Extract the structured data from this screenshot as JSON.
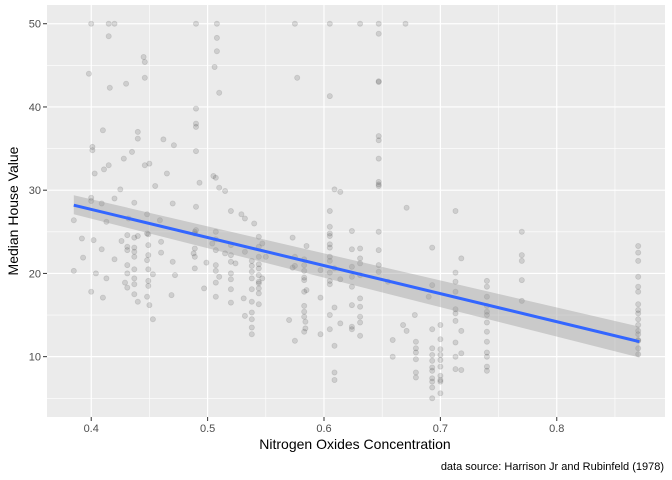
{
  "chart_data": {
    "type": "scatter",
    "title": "",
    "xlabel": "Nitrogen Oxides Concentration",
    "ylabel": "Median House Value",
    "caption": "data source: Harrison Jr and Rubinfeld (1978)",
    "xlim": [
      0.362,
      0.893
    ],
    "ylim": [
      2.75,
      52.25
    ],
    "x_ticks": [
      0.4,
      0.5,
      0.6,
      0.7,
      0.8
    ],
    "x_tick_labels": [
      "0.4",
      "0.5",
      "0.6",
      "0.7",
      "0.8"
    ],
    "y_ticks": [
      10,
      20,
      30,
      40,
      50
    ],
    "y_tick_labels": [
      "10",
      "20",
      "30",
      "40",
      "50"
    ],
    "grid": true,
    "legend": "none",
    "colors": {
      "panel_background": "#ebebeb",
      "grid": "#ffffff",
      "point": "#000000",
      "point_opacity": 0.12,
      "fit_line": "#3366ff",
      "ribbon": "#999999",
      "ribbon_opacity": 0.4
    },
    "fit": {
      "method": "lm",
      "x": [
        0.385,
        0.871
      ],
      "y": [
        28.2,
        11.8
      ],
      "ci_lower": [
        27.1,
        9.9
      ],
      "ci_upper": [
        29.4,
        13.6
      ]
    },
    "points": [
      [
        0.4,
        50.0
      ],
      [
        0.415,
        50.0
      ],
      [
        0.42,
        50.0
      ],
      [
        0.49,
        50.0
      ],
      [
        0.508,
        50.0
      ],
      [
        0.575,
        50.0
      ],
      [
        0.605,
        50.0
      ],
      [
        0.631,
        50.0
      ],
      [
        0.647,
        50.0
      ],
      [
        0.67,
        50.0
      ],
      [
        0.415,
        48.5
      ],
      [
        0.508,
        48.3
      ],
      [
        0.647,
        48.8
      ],
      [
        0.445,
        46.0
      ],
      [
        0.508,
        46.7
      ],
      [
        0.446,
        45.4
      ],
      [
        0.506,
        44.8
      ],
      [
        0.398,
        44.0
      ],
      [
        0.446,
        43.5
      ],
      [
        0.577,
        43.5
      ],
      [
        0.647,
        43.1
      ],
      [
        0.43,
        42.8
      ],
      [
        0.416,
        42.3
      ],
      [
        0.51,
        41.7
      ],
      [
        0.605,
        41.3
      ],
      [
        0.49,
        39.8
      ],
      [
        0.49,
        38.0
      ],
      [
        0.49,
        37.6
      ],
      [
        0.41,
        37.2
      ],
      [
        0.44,
        37.0
      ],
      [
        0.44,
        36.2
      ],
      [
        0.647,
        36.5
      ],
      [
        0.647,
        36.0
      ],
      [
        0.462,
        36.1
      ],
      [
        0.471,
        35.4
      ],
      [
        0.401,
        35.2
      ],
      [
        0.401,
        34.8
      ],
      [
        0.435,
        34.6
      ],
      [
        0.49,
        34.7
      ],
      [
        0.428,
        33.8
      ],
      [
        0.647,
        33.8
      ],
      [
        0.45,
        33.2
      ],
      [
        0.446,
        33.0
      ],
      [
        0.415,
        33.0
      ],
      [
        0.411,
        32.5
      ],
      [
        0.403,
        32.0
      ],
      [
        0.505,
        31.7
      ],
      [
        0.507,
        31.5
      ],
      [
        0.465,
        32.0
      ],
      [
        0.493,
        30.9
      ],
      [
        0.647,
        31.0
      ],
      [
        0.647,
        30.5
      ],
      [
        0.609,
        30.1
      ],
      [
        0.614,
        29.8
      ],
      [
        0.425,
        30.1
      ],
      [
        0.455,
        30.5
      ],
      [
        0.51,
        30.3
      ],
      [
        0.515,
        29.9
      ],
      [
        0.4,
        29.1
      ],
      [
        0.42,
        29.0
      ],
      [
        0.4,
        28.7
      ],
      [
        0.437,
        28.5
      ],
      [
        0.47,
        28.4
      ],
      [
        0.49,
        28.0
      ],
      [
        0.409,
        28.4
      ],
      [
        0.52,
        27.5
      ],
      [
        0.605,
        27.5
      ],
      [
        0.671,
        27.9
      ],
      [
        0.713,
        27.5
      ],
      [
        0.448,
        27.1
      ],
      [
        0.529,
        27.1
      ],
      [
        0.532,
        26.6
      ],
      [
        0.432,
        26.6
      ],
      [
        0.459,
        26.4
      ],
      [
        0.385,
        26.4
      ],
      [
        0.413,
        26.2
      ],
      [
        0.54,
        26.0
      ],
      [
        0.49,
        25.2
      ],
      [
        0.624,
        25.1
      ],
      [
        0.647,
        25.0
      ],
      [
        0.77,
        25.0
      ],
      [
        0.448,
        24.8
      ],
      [
        0.489,
        24.8
      ],
      [
        0.544,
        24.4
      ],
      [
        0.573,
        24.3
      ],
      [
        0.44,
        24.5
      ],
      [
        0.392,
        24.2
      ],
      [
        0.87,
        23.3
      ],
      [
        0.402,
        24.0
      ],
      [
        0.426,
        23.9
      ],
      [
        0.46,
        23.8
      ],
      [
        0.504,
        23.6
      ],
      [
        0.52,
        23.4
      ],
      [
        0.547,
        23.6
      ],
      [
        0.605,
        23.1
      ],
      [
        0.624,
        22.9
      ],
      [
        0.693,
        23.1
      ],
      [
        0.585,
        23.3
      ],
      [
        0.409,
        22.9
      ],
      [
        0.437,
        22.6
      ],
      [
        0.46,
        22.5
      ],
      [
        0.488,
        22.4
      ],
      [
        0.515,
        22.4
      ],
      [
        0.532,
        22.6
      ],
      [
        0.55,
        22.0
      ],
      [
        0.583,
        21.7
      ],
      [
        0.605,
        21.5
      ],
      [
        0.631,
        21.8
      ],
      [
        0.718,
        21.8
      ],
      [
        0.77,
        22.2
      ],
      [
        0.393,
        21.9
      ],
      [
        0.42,
        21.7
      ],
      [
        0.448,
        21.6
      ],
      [
        0.47,
        21.4
      ],
      [
        0.499,
        21.3
      ],
      [
        0.524,
        21.2
      ],
      [
        0.538,
        20.9
      ],
      [
        0.544,
        20.6
      ],
      [
        0.573,
        20.7
      ],
      [
        0.597,
        20.4
      ],
      [
        0.609,
        20.6
      ],
      [
        0.647,
        20.2
      ],
      [
        0.713,
        20.1
      ],
      [
        0.87,
        19.6
      ],
      [
        0.385,
        20.3
      ],
      [
        0.404,
        20.0
      ],
      [
        0.431,
        20.0
      ],
      [
        0.453,
        19.9
      ],
      [
        0.472,
        19.8
      ],
      [
        0.51,
        19.6
      ],
      [
        0.547,
        19.4
      ],
      [
        0.583,
        19.2
      ],
      [
        0.614,
        19.3
      ],
      [
        0.655,
        19.0
      ],
      [
        0.74,
        19.1
      ],
      [
        0.77,
        19.2
      ],
      [
        0.413,
        19.4
      ],
      [
        0.429,
        18.9
      ],
      [
        0.437,
        18.7
      ],
      [
        0.449,
        18.5
      ],
      [
        0.497,
        18.2
      ],
      [
        0.52,
        18.1
      ],
      [
        0.544,
        18.2
      ],
      [
        0.585,
        18.0
      ],
      [
        0.624,
        18.4
      ],
      [
        0.693,
        18.6
      ],
      [
        0.713,
        17.8
      ],
      [
        0.74,
        18.4
      ],
      [
        0.87,
        17.8
      ],
      [
        0.4,
        17.8
      ],
      [
        0.437,
        17.5
      ],
      [
        0.448,
        17.2
      ],
      [
        0.469,
        17.4
      ],
      [
        0.507,
        17.2
      ],
      [
        0.531,
        17.0
      ],
      [
        0.597,
        17.1
      ],
      [
        0.631,
        17.0
      ],
      [
        0.69,
        17.2
      ],
      [
        0.74,
        17.2
      ],
      [
        0.77,
        16.7
      ],
      [
        0.41,
        17.1
      ],
      [
        0.44,
        16.6
      ],
      [
        0.45,
        16.2
      ],
      [
        0.52,
        16.5
      ],
      [
        0.544,
        16.3
      ],
      [
        0.583,
        16.1
      ],
      [
        0.609,
        15.9
      ],
      [
        0.624,
        16.2
      ],
      [
        0.713,
        15.7
      ],
      [
        0.74,
        15.4
      ],
      [
        0.87,
        15.6
      ],
      [
        0.87,
        15.2
      ],
      [
        0.538,
        15.3
      ],
      [
        0.605,
        15.0
      ],
      [
        0.678,
        15.0
      ],
      [
        0.532,
        14.9
      ],
      [
        0.453,
        14.5
      ],
      [
        0.57,
        14.4
      ],
      [
        0.584,
        14.2
      ],
      [
        0.614,
        14.0
      ],
      [
        0.631,
        14.1
      ],
      [
        0.668,
        13.8
      ],
      [
        0.7,
        13.8
      ],
      [
        0.713,
        14.3
      ],
      [
        0.74,
        14.1
      ],
      [
        0.87,
        13.8
      ],
      [
        0.538,
        13.5
      ],
      [
        0.584,
        13.4
      ],
      [
        0.605,
        13.3
      ],
      [
        0.624,
        13.6
      ],
      [
        0.671,
        13.1
      ],
      [
        0.693,
        13.3
      ],
      [
        0.718,
        13.1
      ],
      [
        0.74,
        13.0
      ],
      [
        0.87,
        12.7
      ],
      [
        0.538,
        12.7
      ],
      [
        0.597,
        12.7
      ],
      [
        0.631,
        12.5
      ],
      [
        0.659,
        12.0
      ],
      [
        0.679,
        11.8
      ],
      [
        0.7,
        12.1
      ],
      [
        0.713,
        11.7
      ],
      [
        0.74,
        11.8
      ],
      [
        0.87,
        12.0
      ],
      [
        0.575,
        11.9
      ],
      [
        0.609,
        11.3
      ],
      [
        0.679,
        11.0
      ],
      [
        0.693,
        11.0
      ],
      [
        0.7,
        10.9
      ],
      [
        0.718,
        10.4
      ],
      [
        0.74,
        10.5
      ],
      [
        0.679,
        10.5
      ],
      [
        0.7,
        10.2
      ],
      [
        0.693,
        10.2
      ],
      [
        0.659,
        10.0
      ],
      [
        0.74,
        10.0
      ],
      [
        0.713,
        10.0
      ],
      [
        0.87,
        10.3
      ],
      [
        0.679,
        9.7
      ],
      [
        0.693,
        9.5
      ],
      [
        0.7,
        9.6
      ],
      [
        0.7,
        8.8
      ],
      [
        0.693,
        8.7
      ],
      [
        0.74,
        8.8
      ],
      [
        0.713,
        8.5
      ],
      [
        0.718,
        8.4
      ],
      [
        0.74,
        8.3
      ],
      [
        0.693,
        8.3
      ],
      [
        0.679,
        8.1
      ],
      [
        0.7,
        7.7
      ],
      [
        0.679,
        7.5
      ],
      [
        0.693,
        7.4
      ],
      [
        0.7,
        7.2
      ],
      [
        0.693,
        7.0
      ],
      [
        0.7,
        7.0
      ],
      [
        0.693,
        6.3
      ],
      [
        0.7,
        5.6
      ],
      [
        0.693,
        5.0
      ],
      [
        0.609,
        8.1
      ],
      [
        0.609,
        7.2
      ],
      [
        0.87,
        11.0
      ],
      [
        0.87,
        14.5
      ],
      [
        0.87,
        18.4
      ],
      [
        0.87,
        21.5
      ],
      [
        0.87,
        22.5
      ],
      [
        0.87,
        16.3
      ],
      [
        0.87,
        13.1
      ],
      [
        0.87,
        11.9
      ],
      [
        0.74,
        16.1
      ],
      [
        0.74,
        15.0
      ],
      [
        0.713,
        15.2
      ],
      [
        0.713,
        19.0
      ],
      [
        0.77,
        21.5
      ],
      [
        0.605,
        20.1
      ],
      [
        0.605,
        19.1
      ],
      [
        0.605,
        18.7
      ],
      [
        0.605,
        23.5
      ],
      [
        0.605,
        22.0
      ],
      [
        0.605,
        24.5
      ],
      [
        0.605,
        25.6
      ],
      [
        0.605,
        24.8
      ],
      [
        0.647,
        22.8
      ],
      [
        0.647,
        21.0
      ],
      [
        0.647,
        30.7
      ],
      [
        0.647,
        43.0
      ],
      [
        0.631,
        23.0
      ],
      [
        0.631,
        19.8
      ],
      [
        0.631,
        21.2
      ],
      [
        0.631,
        16.0
      ],
      [
        0.631,
        14.8
      ],
      [
        0.624,
        19.6
      ],
      [
        0.624,
        20.8
      ],
      [
        0.624,
        13.3
      ],
      [
        0.583,
        21.0
      ],
      [
        0.583,
        20.3
      ],
      [
        0.583,
        19.5
      ],
      [
        0.583,
        17.8
      ],
      [
        0.583,
        15.4
      ],
      [
        0.583,
        14.8
      ],
      [
        0.583,
        13.0
      ],
      [
        0.575,
        22.0
      ],
      [
        0.575,
        20.9
      ],
      [
        0.544,
        23.2
      ],
      [
        0.544,
        22.0
      ],
      [
        0.544,
        21.1
      ],
      [
        0.544,
        19.8
      ],
      [
        0.544,
        19.0
      ],
      [
        0.544,
        18.8
      ],
      [
        0.544,
        17.6
      ],
      [
        0.538,
        21.5
      ],
      [
        0.538,
        20.2
      ],
      [
        0.538,
        19.4
      ],
      [
        0.538,
        18.1
      ],
      [
        0.538,
        16.6
      ],
      [
        0.538,
        14.5
      ],
      [
        0.52,
        22.2
      ],
      [
        0.52,
        21.4
      ],
      [
        0.52,
        19.3
      ],
      [
        0.52,
        20.0
      ],
      [
        0.507,
        22.8
      ],
      [
        0.507,
        25.0
      ],
      [
        0.507,
        24.1
      ],
      [
        0.507,
        21.0
      ],
      [
        0.507,
        20.3
      ],
      [
        0.507,
        18.9
      ],
      [
        0.489,
        22.0
      ],
      [
        0.489,
        20.6
      ],
      [
        0.489,
        23.0
      ],
      [
        0.489,
        25.0
      ],
      [
        0.449,
        24.7
      ],
      [
        0.449,
        23.4
      ],
      [
        0.449,
        22.2
      ],
      [
        0.449,
        20.5
      ],
      [
        0.449,
        19.1
      ],
      [
        0.437,
        24.3
      ],
      [
        0.437,
        23.1
      ],
      [
        0.437,
        22.0
      ],
      [
        0.437,
        20.5
      ],
      [
        0.437,
        19.4
      ],
      [
        0.431,
        24.6
      ],
      [
        0.431,
        23.2
      ],
      [
        0.431,
        22.8
      ],
      [
        0.431,
        21.0
      ],
      [
        0.431,
        18.3
      ]
    ]
  }
}
